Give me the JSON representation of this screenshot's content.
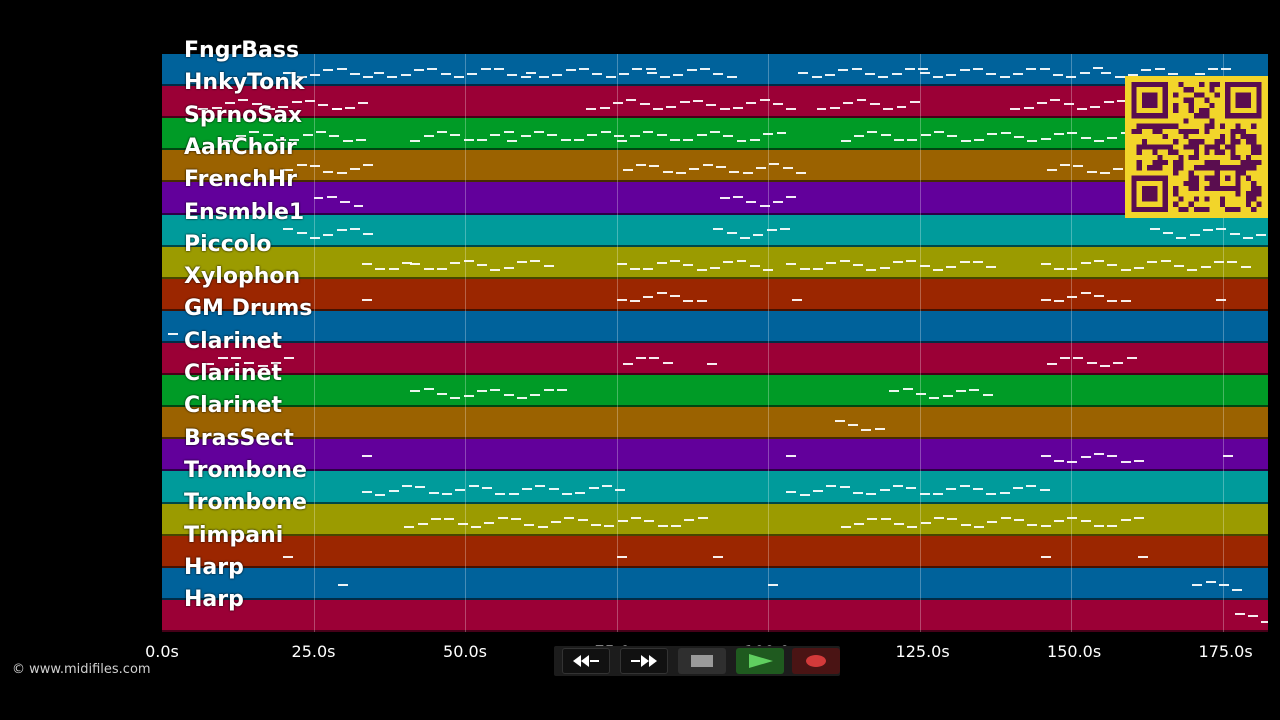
{
  "tracks": [
    {
      "name": "FngrBass",
      "color": "#00629b"
    },
    {
      "name": "HnkyTonk",
      "color": "#9b0036"
    },
    {
      "name": "SprnoSax",
      "color": "#009b26"
    },
    {
      "name": "AahChoir",
      "color": "#9b6200"
    },
    {
      "name": "FrenchHr",
      "color": "#62009b"
    },
    {
      "name": "Ensmble1",
      "color": "#009b9b"
    },
    {
      "name": "Piccolo",
      "color": "#9b9b00"
    },
    {
      "name": "Xylophon",
      "color": "#9b2600"
    },
    {
      "name": "GM Drums",
      "color": "#00629b"
    },
    {
      "name": "Clarinet",
      "color": "#9b0036"
    },
    {
      "name": "Clarinet",
      "color": "#009b26"
    },
    {
      "name": "Clarinet",
      "color": "#9b6200"
    },
    {
      "name": "BrasSect",
      "color": "#62009b"
    },
    {
      "name": "Trombone",
      "color": "#009b9b"
    },
    {
      "name": "Trombone",
      "color": "#9b9b00"
    },
    {
      "name": "Timpani",
      "color": "#9b2600"
    },
    {
      "name": "Harp",
      "color": "#00629b"
    },
    {
      "name": "Harp",
      "color": "#9b0036"
    }
  ],
  "time_axis": {
    "max_seconds": 182.5,
    "ticks": [
      "0.0s",
      "25.0s",
      "50.0s",
      "75.0s",
      "100.0s",
      "125.0s",
      "150.0s",
      "175.0s"
    ],
    "tick_values": [
      0,
      25,
      50,
      75,
      100,
      125,
      150,
      175
    ]
  },
  "notes": [
    [
      [
        20,
        35
      ],
      [
        35,
        60
      ],
      [
        60,
        80
      ],
      [
        80,
        95
      ],
      [
        105,
        125
      ],
      [
        125,
        155
      ],
      [
        155,
        175
      ]
    ],
    [
      [
        6,
        28
      ],
      [
        28,
        34
      ],
      [
        70,
        92
      ],
      [
        92,
        104
      ],
      [
        108,
        125
      ],
      [
        140,
        160
      ]
    ],
    [
      [
        10,
        33
      ],
      [
        41,
        57
      ],
      [
        57,
        75
      ],
      [
        75,
        103
      ],
      [
        112,
        160
      ]
    ],
    [
      [
        20,
        35
      ],
      [
        76,
        105
      ],
      [
        146,
        160
      ]
    ],
    [
      [
        25,
        33
      ],
      [
        92,
        104
      ]
    ],
    [
      [
        20,
        35
      ],
      [
        91,
        104
      ],
      [
        163,
        182
      ]
    ],
    [
      [
        33,
        40
      ],
      [
        41,
        65
      ],
      [
        75,
        100
      ],
      [
        103,
        138
      ],
      [
        145,
        180
      ]
    ],
    [
      [
        33,
        34
      ],
      [
        75,
        90
      ],
      [
        104,
        105
      ],
      [
        145,
        160
      ],
      [
        174,
        175
      ]
    ],
    [
      [
        1,
        2
      ]
    ],
    [
      [
        7,
        21
      ],
      [
        76,
        84
      ],
      [
        90,
        92
      ],
      [
        146,
        161
      ]
    ],
    [
      [
        41,
        66
      ],
      [
        120,
        136
      ]
    ],
    [
      [
        111,
        119
      ]
    ],
    [
      [
        33,
        34
      ],
      [
        103,
        104
      ],
      [
        145,
        162
      ],
      [
        175,
        176
      ]
    ],
    [
      [
        33,
        75
      ],
      [
        103,
        145
      ]
    ],
    [
      [
        40,
        90
      ],
      [
        112,
        162
      ]
    ],
    [
      [
        20,
        21
      ],
      [
        75,
        77
      ],
      [
        91,
        92
      ],
      [
        145,
        147
      ],
      [
        161,
        162
      ]
    ],
    [
      [
        29,
        31
      ],
      [
        100,
        102
      ],
      [
        170,
        178
      ]
    ],
    [
      [
        177,
        182
      ]
    ]
  ],
  "copyright": "© www.midifiles.com",
  "transport": {
    "rewind_icon": "rewind-icon",
    "fast_forward_icon": "fast-forward-icon",
    "stop_icon": "stop-icon",
    "play_icon": "play-icon",
    "record_icon": "record-icon",
    "colors": {
      "play": "#3a9e3a",
      "record": "#c33333",
      "stop": "#9a9a9a"
    }
  },
  "qr_code": {
    "icon": "qr-code-icon",
    "colors": {
      "background": "#f2d52a",
      "modules": "#5a0d4f"
    }
  }
}
